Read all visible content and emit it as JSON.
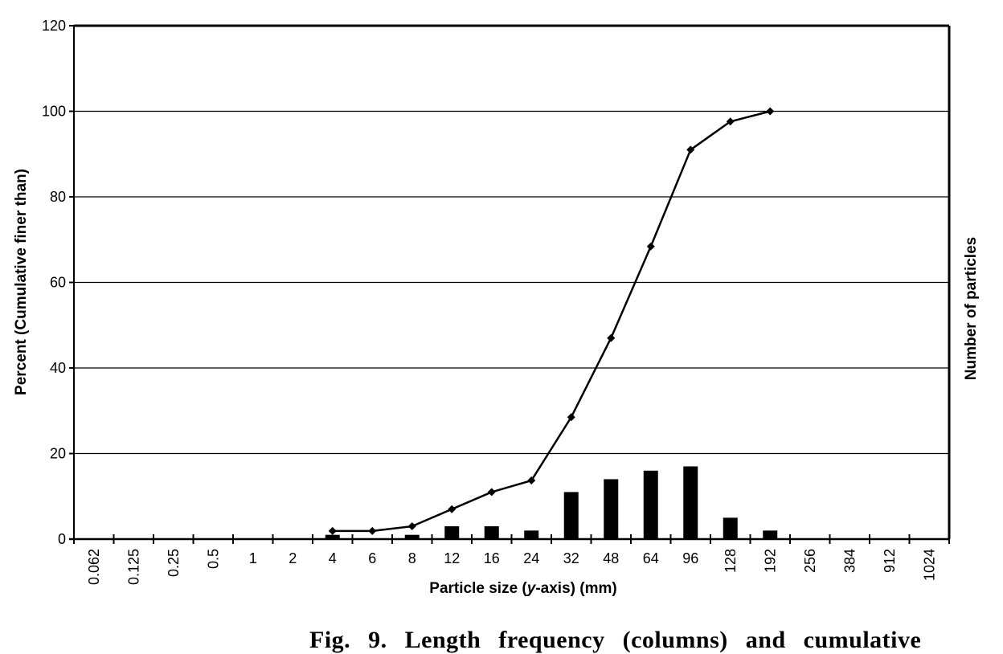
{
  "chart_data": {
    "type": "bar+line",
    "title": "",
    "xlabel": "Particle size (y-axis) (mm)",
    "xlabel_parts": {
      "before": "Particle size (",
      "italic": "y",
      "after": "-axis) (mm)"
    },
    "ylabel": "Percent (Cumulative finer than)",
    "ylabel_right": "Number of particles",
    "ylim": [
      0,
      120
    ],
    "yticks": [
      0,
      20,
      40,
      60,
      80,
      100,
      120
    ],
    "grid": {
      "horizontal": true,
      "vertical": false
    },
    "categories": [
      "0.062",
      "0.125",
      "0.25",
      "0.5",
      "1",
      "2",
      "4",
      "6",
      "8",
      "12",
      "16",
      "24",
      "32",
      "48",
      "64",
      "96",
      "128",
      "192",
      "256",
      "384",
      "912",
      "1024"
    ],
    "rotated_labels": [
      "0.062",
      "0.125",
      "0.25",
      "0.5",
      "128",
      "192",
      "256",
      "384",
      "912",
      "1024"
    ],
    "series": [
      {
        "name": "Number of particles",
        "type": "bar",
        "axis": "right",
        "values": [
          null,
          null,
          null,
          null,
          null,
          null,
          1,
          null,
          1,
          3,
          3,
          2,
          11,
          14,
          16,
          17,
          5,
          2,
          null,
          null,
          null,
          null
        ]
      },
      {
        "name": "Percent cumulative finer than",
        "type": "line",
        "marker": "diamond",
        "axis": "left",
        "values": [
          null,
          null,
          null,
          null,
          null,
          null,
          1.9,
          1.9,
          3.0,
          7.0,
          11.0,
          13.7,
          28.5,
          47.0,
          68.4,
          91.0,
          97.6,
          100.0,
          null,
          null,
          null,
          null
        ]
      }
    ],
    "legend": null
  },
  "caption": {
    "text": "Fig. 9. Length frequency (columns) and cumulative"
  },
  "colors": {
    "line": "#000000",
    "bars": "#000000",
    "grid": "#000000",
    "background": "#ffffff"
  }
}
